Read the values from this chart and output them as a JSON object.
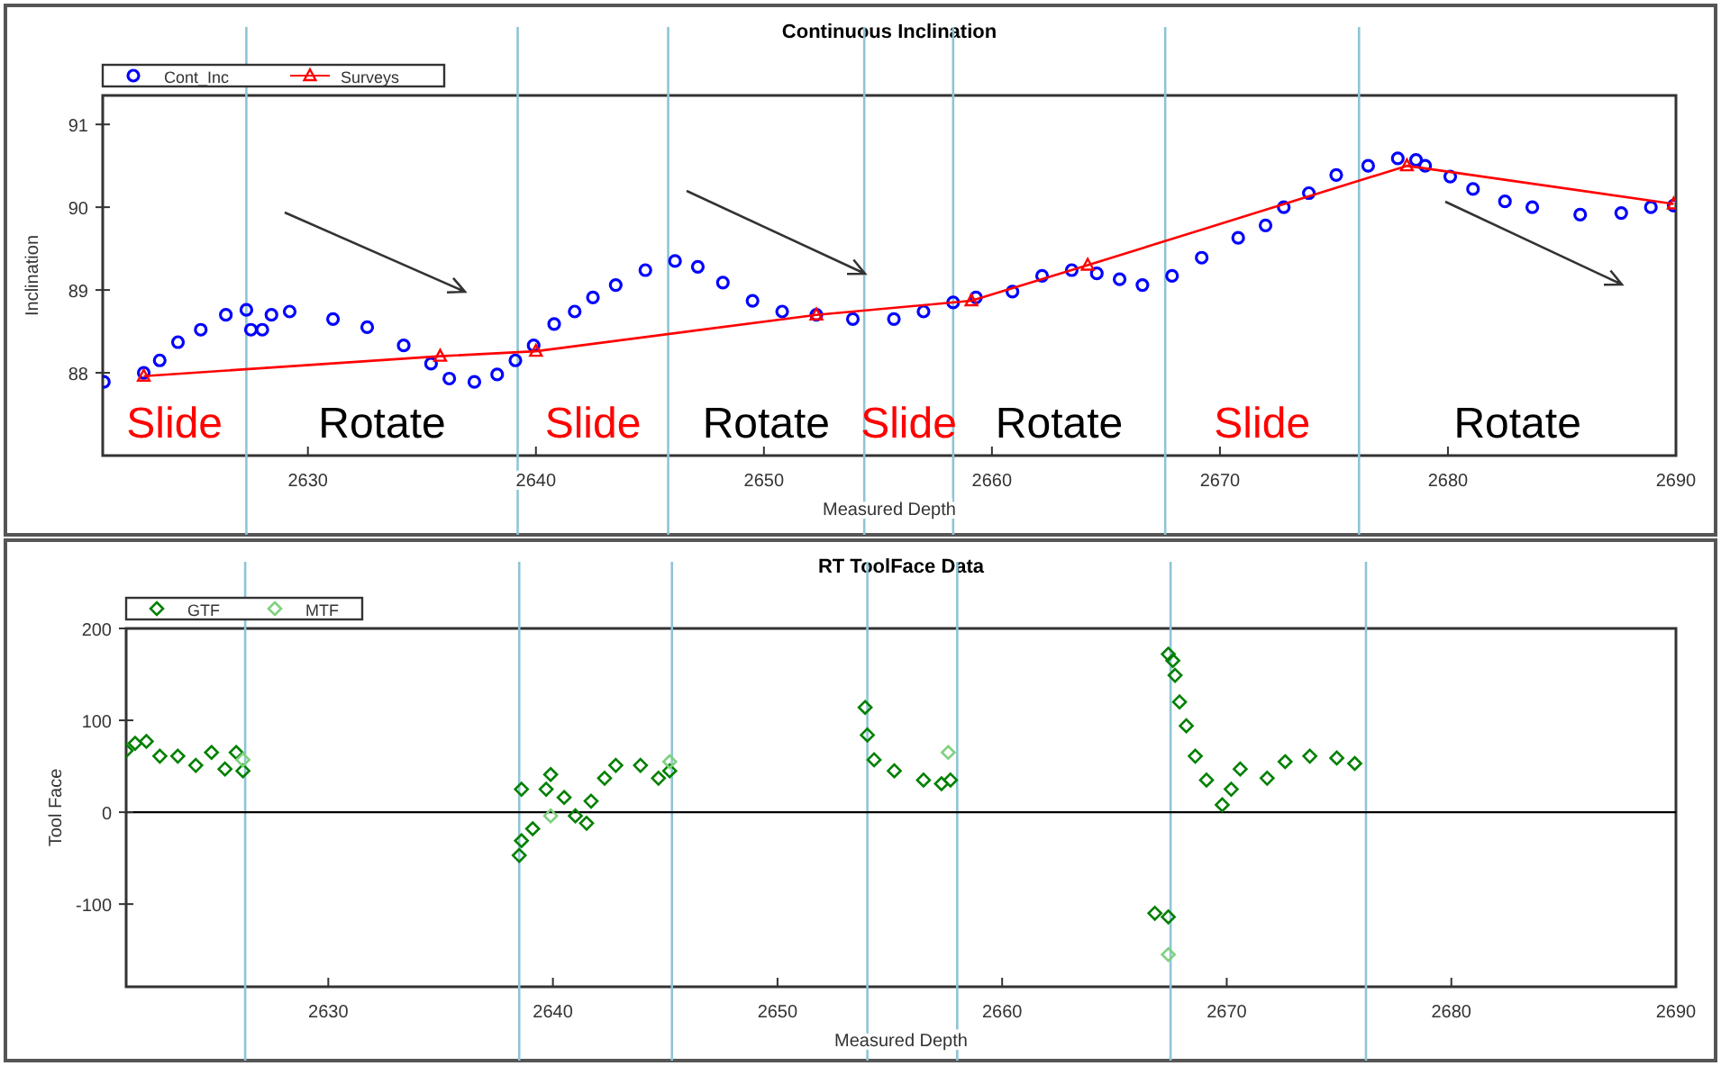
{
  "chart_data": [
    {
      "type": "scatter",
      "title": "Continuous Inclination",
      "xlabel": "Measured Depth",
      "ylabel": "Inclination",
      "xlim": [
        2621,
        2690
      ],
      "ylim": [
        87.0,
        91.35
      ],
      "xticks": [
        2630,
        2640,
        2650,
        2660,
        2670,
        2680,
        2690
      ],
      "yticks": [
        88,
        89,
        90,
        91
      ],
      "grid": false,
      "legend": "top left",
      "series": [
        {
          "name": "Cont_Inc",
          "marker": "circle",
          "color": "#0000ff",
          "x": [
            2621.05,
            2622.8,
            2623.5,
            2624.3,
            2625.3,
            2626.4,
            2627.3,
            2627.5,
            2628.0,
            2628.4,
            2629.2,
            2631.1,
            2632.6,
            2634.2,
            2635.4,
            2636.2,
            2637.3,
            2638.3,
            2639.1,
            2639.9,
            2640.8,
            2641.7,
            2642.5,
            2643.5,
            2644.8,
            2646.1,
            2647.1,
            2648.2,
            2649.5,
            2650.8,
            2652.3,
            2653.9,
            2655.7,
            2657.0,
            2658.3,
            2659.3,
            2660.9,
            2662.2,
            2663.5,
            2664.6,
            2665.6,
            2666.6,
            2667.9,
            2669.2,
            2670.8,
            2672.0,
            2672.8,
            2673.9,
            2675.1,
            2676.5,
            2677.8,
            2678.6,
            2679.0,
            2680.1,
            2681.1,
            2682.5,
            2683.7,
            2685.8,
            2687.6,
            2688.9,
            2689.9
          ],
          "values": [
            87.89,
            88.0,
            88.15,
            88.37,
            88.52,
            88.7,
            88.76,
            88.52,
            88.52,
            88.7,
            88.74,
            88.65,
            88.55,
            88.33,
            88.11,
            87.93,
            87.89,
            87.98,
            88.15,
            88.33,
            88.59,
            88.74,
            88.91,
            89.06,
            89.24,
            89.35,
            89.28,
            89.09,
            88.87,
            88.74,
            88.7,
            88.65,
            88.65,
            88.74,
            88.85,
            88.91,
            88.98,
            89.17,
            89.24,
            89.2,
            89.13,
            89.06,
            89.17,
            89.39,
            89.63,
            89.78,
            90.0,
            90.17,
            90.39,
            90.5,
            90.59,
            90.57,
            90.5,
            90.37,
            90.22,
            90.07,
            90.0,
            89.91,
            89.93,
            90.0,
            90.02
          ]
        },
        {
          "name": "Surveys",
          "type": "line",
          "marker": "triangle",
          "color": "#ff0000",
          "x": [
            2622.8,
            2635.8,
            2640.0,
            2652.3,
            2659.1,
            2664.2,
            2678.2,
            2689.9
          ],
          "values": [
            87.96,
            88.2,
            88.26,
            88.7,
            88.87,
            89.3,
            90.5,
            90.04
          ]
        }
      ],
      "ref_lines": [
        {
          "axis": "x",
          "value": 2627.3,
          "color": "#8ec5d6"
        },
        {
          "axis": "x",
          "value": 2639.2,
          "color": "#8ec5d6"
        },
        {
          "axis": "x",
          "value": 2645.8,
          "color": "#8ec5d6"
        },
        {
          "axis": "x",
          "value": 2654.4,
          "color": "#8ec5d6"
        },
        {
          "axis": "x",
          "value": 2658.3,
          "color": "#8ec5d6"
        },
        {
          "axis": "x",
          "value": 2667.6,
          "color": "#8ec5d6"
        },
        {
          "axis": "x",
          "value": 2676.1,
          "color": "#8ec5d6"
        }
      ],
      "annotations": [
        "Slide",
        "Rotate",
        "Slide",
        "Rotate",
        "Slide",
        "Rotate",
        "Slide",
        "Rotate"
      ]
    },
    {
      "type": "scatter",
      "title": "RT ToolFace Data",
      "xlabel": "Measured Depth",
      "ylabel": "Tool Face",
      "xlim": [
        2621,
        2690
      ],
      "ylim": [
        -190,
        200
      ],
      "xticks": [
        2630,
        2640,
        2650,
        2660,
        2670,
        2680,
        2690
      ],
      "yticks": [
        -100,
        0,
        100,
        200
      ],
      "grid": false,
      "legend": "top left",
      "series": [
        {
          "name": "GTF",
          "marker": "diamond",
          "color": "#008000",
          "x": [
            2621.0,
            2621.4,
            2621.9,
            2622.5,
            2623.3,
            2624.1,
            2624.8,
            2625.4,
            2625.9,
            2626.2,
            2638.5,
            2638.6,
            2638.6,
            2639.1,
            2639.7,
            2639.9,
            2640.5,
            2641.0,
            2641.5,
            2641.7,
            2642.3,
            2642.8,
            2643.9,
            2644.7,
            2645.2,
            2653.9,
            2654.0,
            2654.3,
            2655.2,
            2656.5,
            2657.3,
            2657.7,
            2666.8,
            2667.4,
            2667.4,
            2667.6,
            2667.7,
            2667.9,
            2668.2,
            2668.6,
            2669.1,
            2669.8,
            2670.2,
            2670.6,
            2671.8,
            2672.6,
            2673.7,
            2674.9,
            2675.7
          ],
          "values": [
            67,
            75,
            77,
            61,
            61,
            51,
            65,
            47,
            65,
            45,
            -47,
            -31,
            25,
            -18,
            25,
            41,
            16,
            -4,
            -12,
            12,
            37,
            51,
            51,
            37,
            45,
            114,
            84,
            57,
            45,
            35,
            31,
            35,
            -110,
            -114,
            172,
            165,
            149,
            120,
            94,
            61,
            35,
            8,
            25,
            47,
            37,
            55,
            61,
            59,
            53
          ]
        },
        {
          "name": "MTF",
          "marker": "diamond",
          "color": "#7fd17f",
          "x": [
            2626.2,
            2639.9,
            2645.2,
            2657.6,
            2667.4
          ],
          "values": [
            57,
            -4,
            55,
            65,
            -155
          ]
        }
      ],
      "ref_lines": [
        {
          "axis": "y",
          "value": 0,
          "color": "#000000"
        },
        {
          "axis": "x",
          "value": 2626.3,
          "color": "#8ec5d6"
        },
        {
          "axis": "x",
          "value": 2638.5,
          "color": "#8ec5d6"
        },
        {
          "axis": "x",
          "value": 2645.3,
          "color": "#8ec5d6"
        },
        {
          "axis": "x",
          "value": 2654.0,
          "color": "#8ec5d6"
        },
        {
          "axis": "x",
          "value": 2658.0,
          "color": "#8ec5d6"
        },
        {
          "axis": "x",
          "value": 2667.5,
          "color": "#8ec5d6"
        },
        {
          "axis": "x",
          "value": 2676.2,
          "color": "#8ec5d6"
        }
      ]
    }
  ]
}
